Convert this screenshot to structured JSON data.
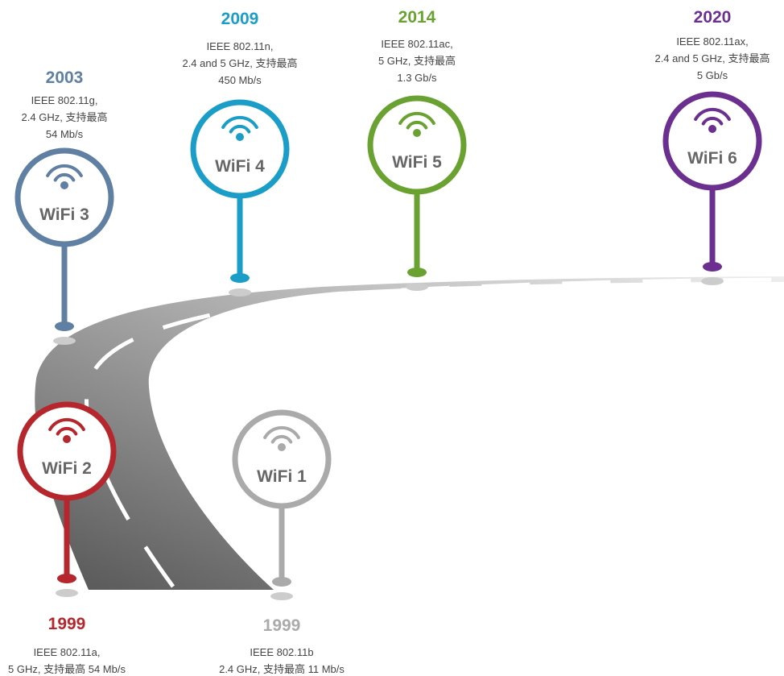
{
  "milestones": [
    {
      "label": "WiFi 3",
      "year": "2003",
      "desc": [
        "IEEE 802.11g,",
        "2.4 GHz, 支持最高",
        "54 Mb/s"
      ]
    },
    {
      "label": "WiFi 4",
      "year": "2009",
      "desc": [
        "IEEE 802.11n,",
        "2.4 and 5 GHz, 支持最高",
        "450 Mb/s"
      ]
    },
    {
      "label": "WiFi 5",
      "year": "2014",
      "desc": [
        "IEEE 802.11ac,",
        "5 GHz, 支持最高",
        "1.3 Gb/s"
      ]
    },
    {
      "label": "WiFi 6",
      "year": "2020",
      "desc": [
        "IEEE 802.11ax,",
        "2.4 and 5 GHz, 支持最高",
        "5 Gb/s"
      ]
    },
    {
      "label": "WiFi 2",
      "year": "1999",
      "desc": [
        "IEEE 802.11a,",
        "5 GHz, 支持最高 54 Mb/s"
      ]
    },
    {
      "label": "WiFi 1",
      "year": "1999",
      "desc": [
        "IEEE 802.11b",
        "2.4 GHz, 支持最高 11 Mb/s"
      ]
    }
  ]
}
